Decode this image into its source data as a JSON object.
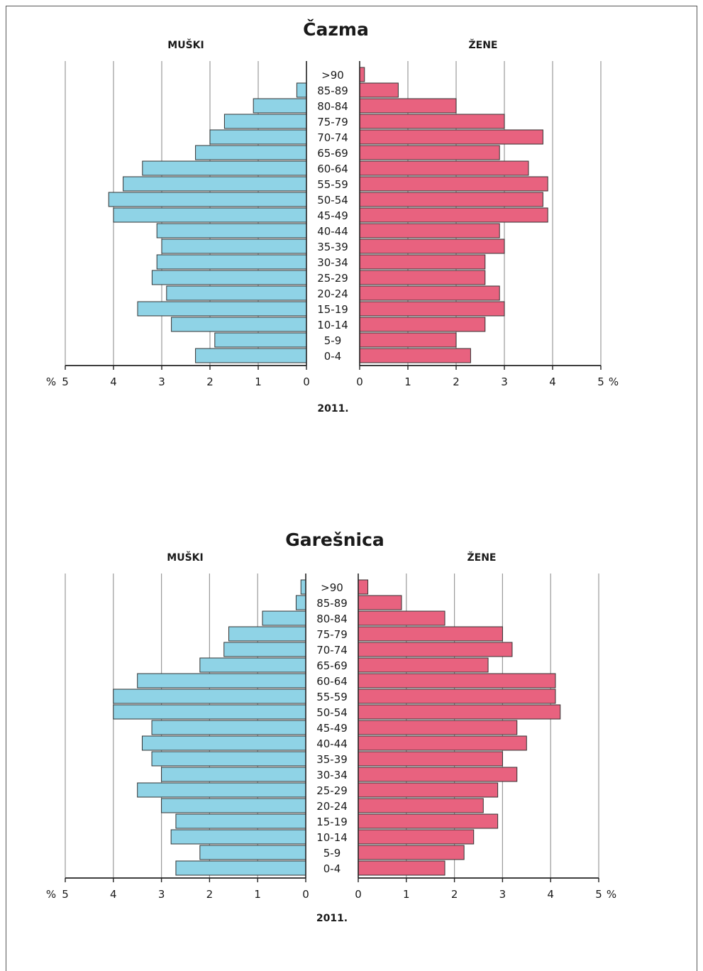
{
  "colors": {
    "male": "#8fd3e6",
    "female": "#e8627f",
    "grid": "#9a9a9a",
    "axis": "#222222",
    "bar_border": "#333333"
  },
  "chart_data": [
    {
      "type": "bar",
      "title": "Čazma",
      "left_label": "MUŠKI",
      "right_label": "ŽENE",
      "year_label": "2011.",
      "unit_label": "%",
      "xlim": [
        0,
        5
      ],
      "ticks": [
        "5",
        "4",
        "3",
        "2",
        "1",
        "0"
      ],
      "ticks_right": [
        "0",
        "1",
        "2",
        "3",
        "4",
        "5"
      ],
      "categories": [
        ">90",
        "85-89",
        "80-84",
        "75-79",
        "70-74",
        "65-69",
        "60-64",
        "55-59",
        "50-54",
        "45-49",
        "40-44",
        "35-39",
        "30-34",
        "25-29",
        "20-24",
        "15-19",
        "10-14",
        "5-9",
        "0-4"
      ],
      "series": [
        {
          "name": "MUŠKI",
          "values": [
            0.0,
            0.2,
            1.1,
            1.7,
            2.0,
            2.3,
            3.4,
            3.8,
            4.1,
            4.0,
            3.1,
            3.0,
            3.1,
            3.2,
            2.9,
            3.5,
            2.8,
            1.9,
            2.3
          ]
        },
        {
          "name": "ŽENE",
          "values": [
            0.1,
            0.8,
            2.0,
            3.0,
            3.8,
            2.9,
            3.5,
            3.9,
            3.8,
            3.9,
            2.9,
            3.0,
            2.6,
            2.6,
            2.9,
            3.0,
            2.6,
            2.0,
            2.3
          ]
        }
      ]
    },
    {
      "type": "bar",
      "title": "Garešnica",
      "left_label": "MUŠKI",
      "right_label": "ŽENE",
      "year_label": "2011.",
      "unit_label": "%",
      "xlim": [
        0,
        5
      ],
      "ticks": [
        "5",
        "4",
        "3",
        "2",
        "1",
        "0"
      ],
      "ticks_right": [
        "0",
        "1",
        "2",
        "3",
        "4",
        "5"
      ],
      "categories": [
        ">90",
        "85-89",
        "80-84",
        "75-79",
        "70-74",
        "65-69",
        "60-64",
        "55-59",
        "50-54",
        "45-49",
        "40-44",
        "35-39",
        "30-34",
        "25-29",
        "20-24",
        "15-19",
        "10-14",
        "5-9",
        "0-4"
      ],
      "series": [
        {
          "name": "MUŠKI",
          "values": [
            0.1,
            0.2,
            0.9,
            1.6,
            1.7,
            2.2,
            3.5,
            4.0,
            4.0,
            3.2,
            3.4,
            3.2,
            3.0,
            3.5,
            3.0,
            2.7,
            2.8,
            2.2,
            2.7
          ]
        },
        {
          "name": "ŽENE",
          "values": [
            0.2,
            0.9,
            1.8,
            3.0,
            3.2,
            2.7,
            4.1,
            4.1,
            4.2,
            3.3,
            3.5,
            3.0,
            3.3,
            2.9,
            2.6,
            2.9,
            2.4,
            2.2,
            1.8
          ]
        }
      ]
    }
  ]
}
